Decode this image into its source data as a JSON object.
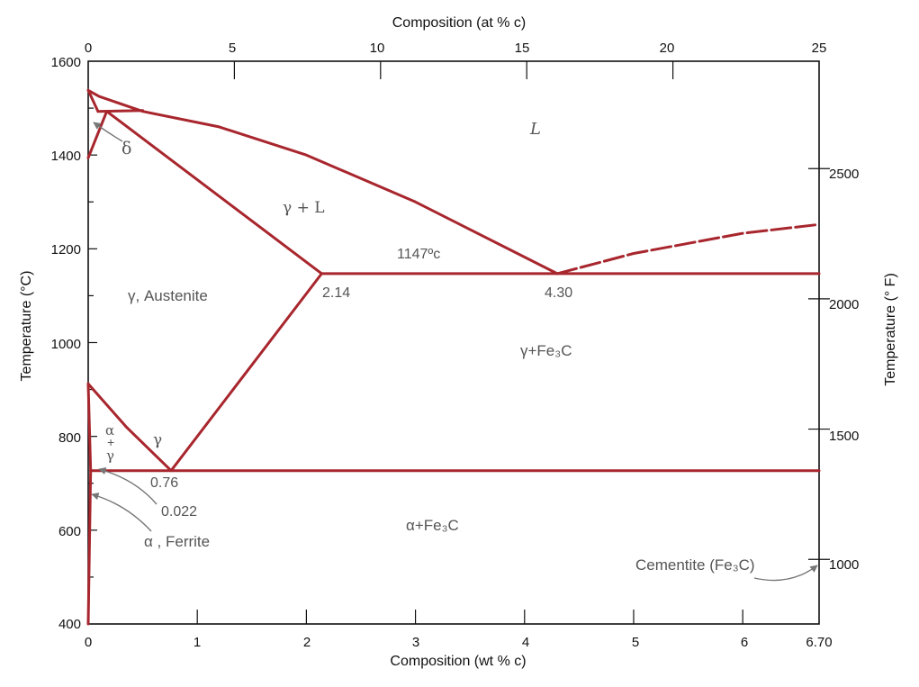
{
  "axes": {
    "bottom_title": "Composition (wt % c)",
    "top_title": "Composition (at % c)",
    "left_title": "Temperature (°C)",
    "right_title": "Temperature (° F)",
    "bottom_ticks": [
      "0",
      "1",
      "2",
      "3",
      "4",
      "5",
      "6",
      "6.70"
    ],
    "top_ticks": [
      "0",
      "5",
      "10",
      "15",
      "20",
      "25"
    ],
    "left_ticks": [
      "400",
      "600",
      "800",
      "1000",
      "1200",
      "1400",
      "1600"
    ],
    "right_ticks": [
      "1000",
      "1500",
      "2000",
      "2500"
    ]
  },
  "labels": {
    "liquid": "L",
    "delta": "δ",
    "gamma_liquid": "γ + L",
    "eutectic_temp": "1147ºc",
    "austenite": "γ, Austenite",
    "eutectic_gamma_comp": "2.14",
    "eutectic_comp": "4.30",
    "gamma_cementite": "γ+Fe₃C",
    "alpha": "α",
    "plus": "+",
    "gamma_small": "γ",
    "gamma": "γ",
    "eutectoid_comp": "0.76",
    "alpha_solubility": "0.022",
    "ferrite": "α , Ferrite",
    "alpha_cementite": "α+Fe₃C",
    "cementite": "Cementite (Fe₃C)"
  },
  "colors": {
    "phase_line": "#a8262d",
    "label_text": "#555555",
    "axis": "#111111",
    "arrow": "#777777"
  },
  "chart_data": {
    "type": "line",
    "title": "",
    "xlabel": "Composition (wt % c)",
    "ylabel": "Temperature (°C)",
    "xlim": [
      0,
      6.7
    ],
    "ylim": [
      400,
      1600
    ],
    "secondary_x": {
      "label": "Composition (at % c)",
      "ticks": [
        0,
        5,
        10,
        15,
        20,
        25
      ]
    },
    "secondary_y": {
      "label": "Temperature (° F)",
      "ticks": [
        1000,
        1500,
        2000,
        2500
      ]
    },
    "grid": false,
    "series": [
      {
        "x": [
          0,
          0.1,
          0.5,
          1.2,
          2.0,
          3.0,
          4.3
        ],
        "y": [
          1538,
          1525,
          1493,
          1460,
          1400,
          1300,
          1147
        ],
        "style": "solid"
      },
      {
        "x": [
          0,
          0.09
        ],
        "y": [
          1538,
          1493
        ],
        "style": "solid"
      },
      {
        "x": [
          0,
          0.17
        ],
        "y": [
          1394,
          1493
        ],
        "style": "solid"
      },
      {
        "x": [
          0.09,
          0.5
        ],
        "y": [
          1493,
          1495
        ],
        "style": "solid"
      },
      {
        "x": [
          0.17,
          2.14
        ],
        "y": [
          1493,
          1147
        ],
        "style": "solid"
      },
      {
        "x": [
          2.14,
          6.7
        ],
        "y": [
          1147,
          1147
        ],
        "style": "solid"
      },
      {
        "x": [
          0.76,
          2.14
        ],
        "y": [
          727,
          1147
        ],
        "style": "solid"
      },
      {
        "x": [
          0,
          0.35,
          0.76
        ],
        "y": [
          912,
          820,
          727
        ],
        "style": "solid"
      },
      {
        "x": [
          0,
          0.022
        ],
        "y": [
          912,
          727
        ],
        "style": "solid"
      },
      {
        "x": [
          0.022,
          6.7
        ],
        "y": [
          727,
          727
        ],
        "style": "solid"
      },
      {
        "x": [
          0,
          0.022
        ],
        "y": [
          400,
          727
        ],
        "style": "solid"
      },
      {
        "x": [
          4.3,
          5.0,
          6.0,
          6.7
        ],
        "y": [
          1147,
          1190,
          1233,
          1252
        ],
        "style": "dashed"
      }
    ],
    "annotations": [
      {
        "text": "1147ºc",
        "x": 3.05,
        "y": 1165
      },
      {
        "text": "2.14",
        "x": 2.14,
        "y": 1147
      },
      {
        "text": "4.30",
        "x": 4.3,
        "y": 1147
      },
      {
        "text": "0.76",
        "x": 0.76,
        "y": 727
      },
      {
        "text": "0.022",
        "x": 0.022,
        "y": 727
      }
    ]
  }
}
